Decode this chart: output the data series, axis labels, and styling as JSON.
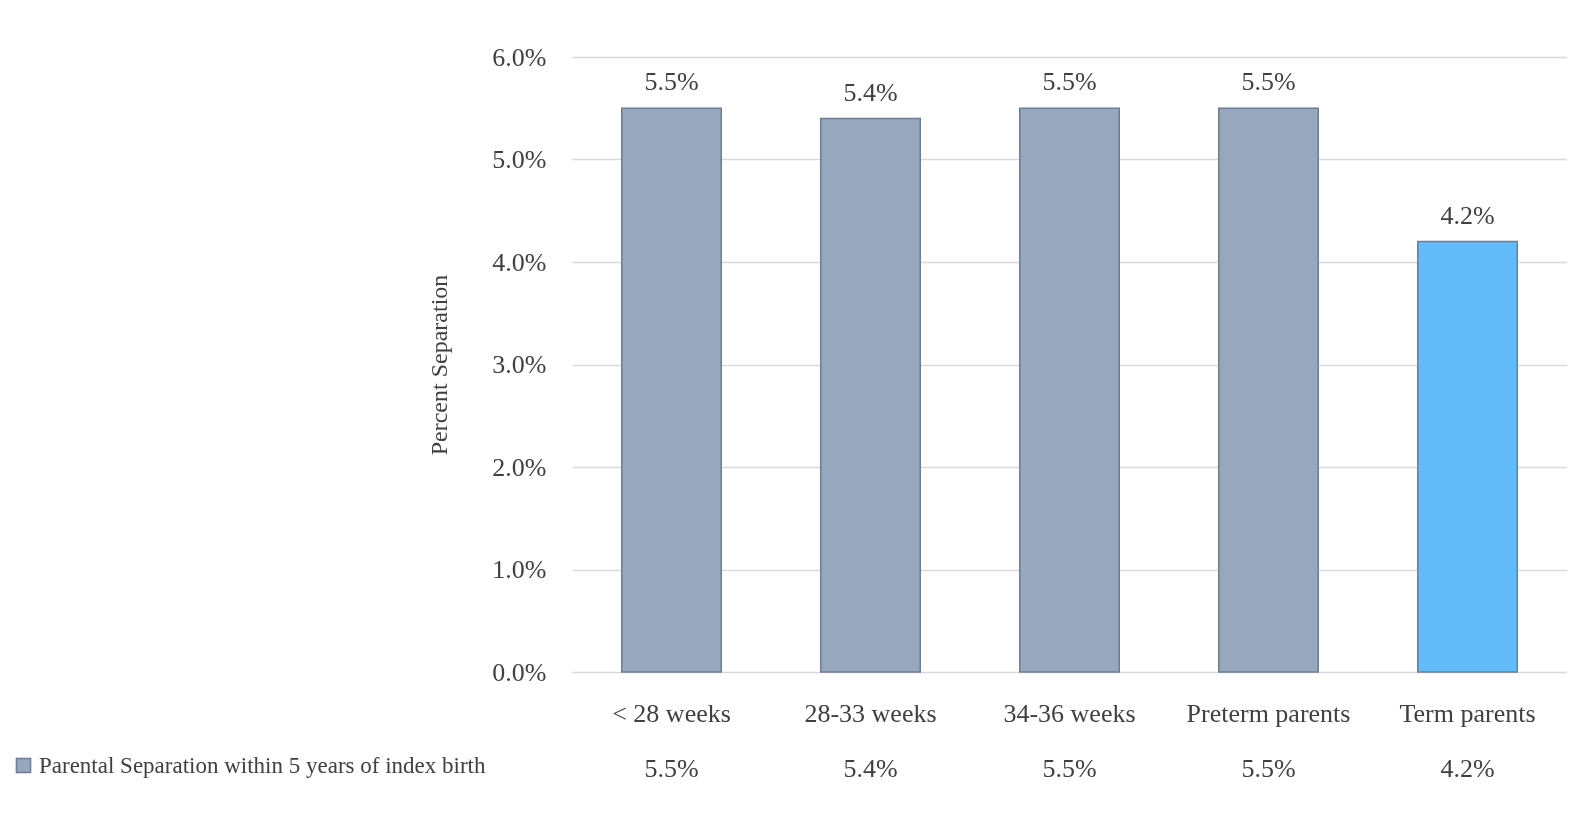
{
  "chart_data": {
    "type": "bar",
    "ylabel": "Percent Separation",
    "categories": [
      "< 28 weeks",
      "28-33 weeks",
      "34-36 weeks",
      "Preterm parents",
      "Term parents"
    ],
    "series": [
      {
        "name": "Parental Separation within 5 years of index birth",
        "values": [
          5.5,
          5.4,
          5.5,
          5.5,
          4.2
        ],
        "colors": [
          "#97a7bd",
          "#97a7bd",
          "#97a7bd",
          "#97a7bd",
          "#63bcfa"
        ],
        "value_labels": [
          "5.5%",
          "5.4%",
          "5.5%",
          "5.5%",
          "4.2%"
        ]
      }
    ],
    "ylim": [
      0,
      6
    ],
    "yticks": [
      {
        "value": 0,
        "label": "0.0%"
      },
      {
        "value": 1,
        "label": "1.0%"
      },
      {
        "value": 2,
        "label": "2.0%"
      },
      {
        "value": 3,
        "label": "3.0%"
      },
      {
        "value": 4,
        "label": "4.0%"
      },
      {
        "value": 5,
        "label": "5.0%"
      },
      {
        "value": 6,
        "label": "6.0%"
      }
    ],
    "grid": true,
    "legend": "bottom left",
    "data_labels": true
  }
}
